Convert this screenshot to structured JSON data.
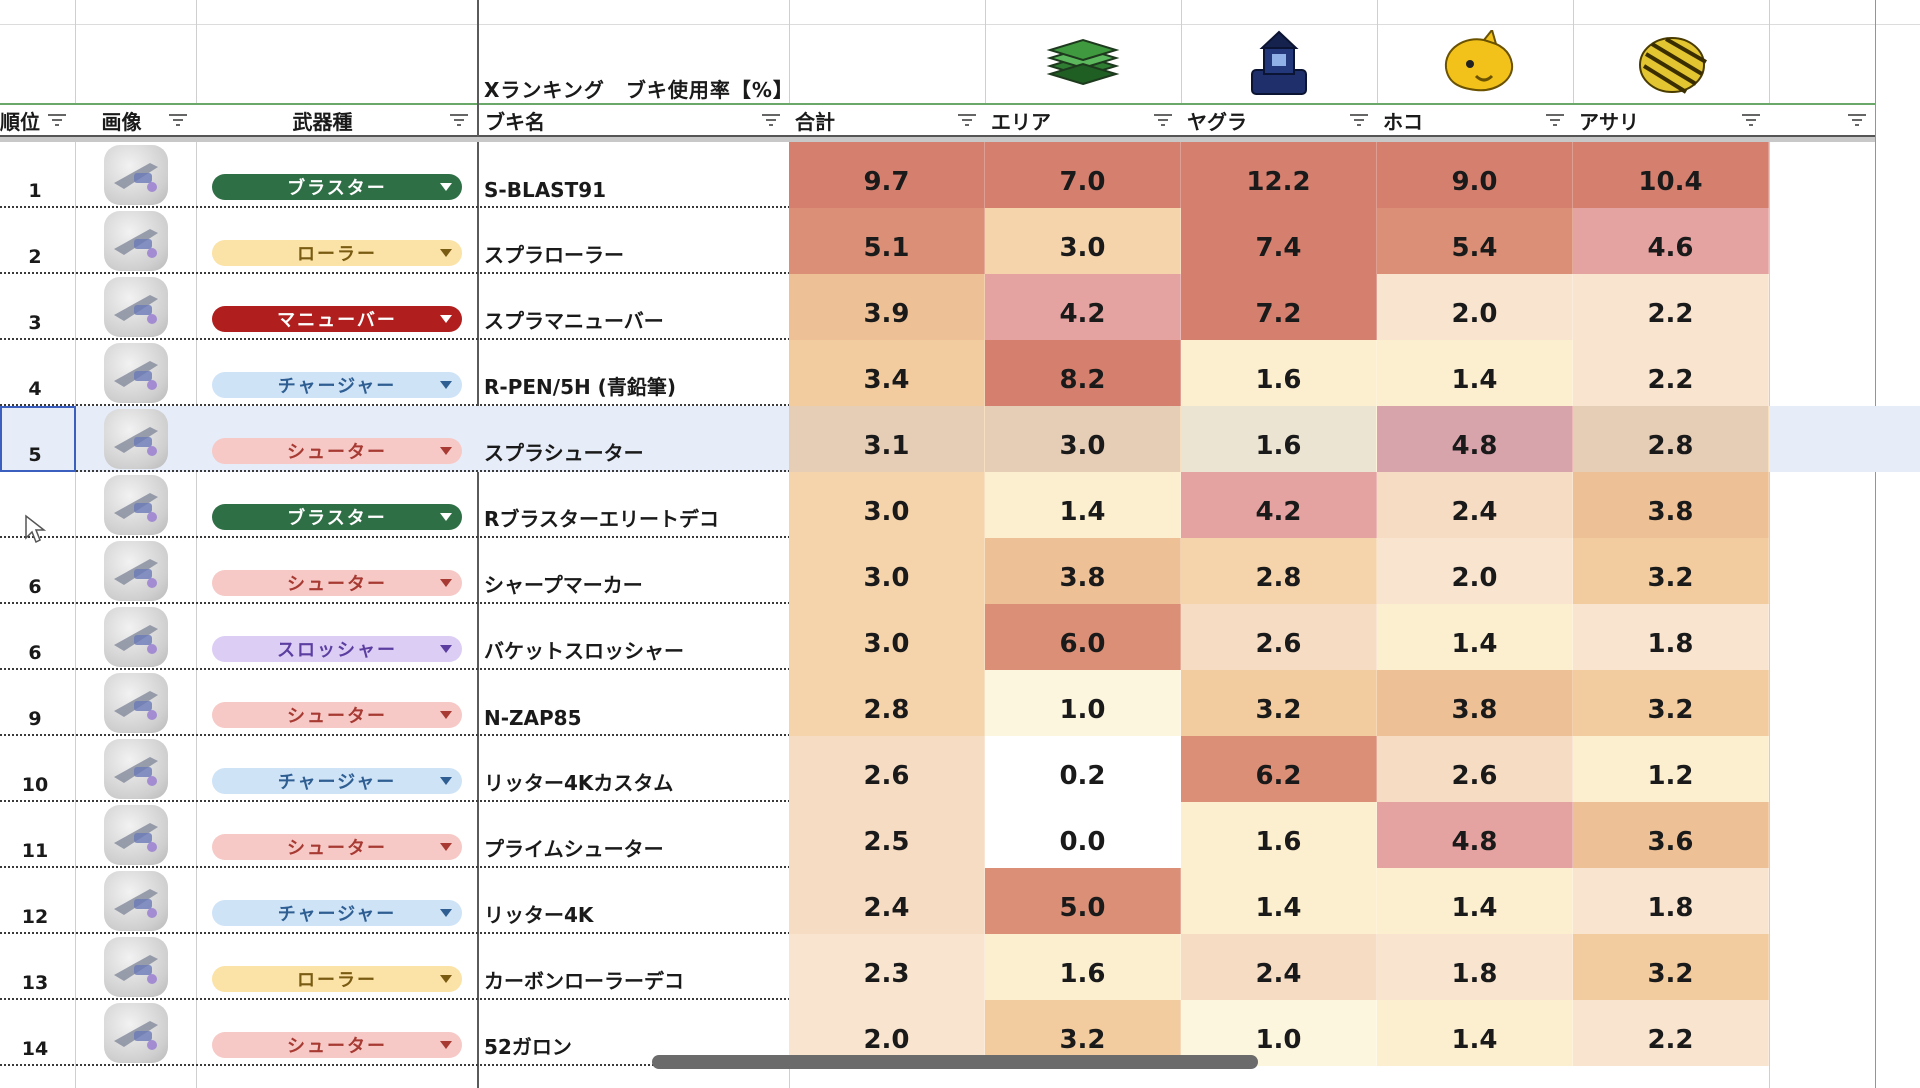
{
  "title": "Xランキング　ブキ使用率【%】",
  "modes": [
    {
      "name": "エリア",
      "icon": "splat-zones-icon"
    },
    {
      "name": "ヤグラ",
      "icon": "tower-control-icon"
    },
    {
      "name": "ホコ",
      "icon": "rainmaker-icon"
    },
    {
      "name": "アサリ",
      "icon": "clam-blitz-icon"
    }
  ],
  "headers": {
    "rank": "順位",
    "image": "画像",
    "type": "武器種",
    "name": "ブキ名",
    "total": "合計",
    "area": "エリア",
    "yagura": "ヤグラ",
    "hoko": "ホコ",
    "asari": "アサリ"
  },
  "type_colors": {
    "ブラスター": {
      "bg": "#2f6f46",
      "fg": "#ffffff"
    },
    "ローラー": {
      "bg": "#fbe2a6",
      "fg": "#7a5b12"
    },
    "マニューバー": {
      "bg": "#b01e1e",
      "fg": "#ffffff"
    },
    "チャージャー": {
      "bg": "#cfe3f7",
      "fg": "#2f5f92"
    },
    "シューター": {
      "bg": "#f6c9c6",
      "fg": "#a73a33"
    },
    "スロッシャー": {
      "bg": "#dccdf4",
      "fg": "#5b3ea0"
    }
  },
  "rows": [
    {
      "rank": "1",
      "type": "ブラスター",
      "name": "S-BLAST91",
      "values": [
        "9.7",
        "7.0",
        "12.2",
        "9.0",
        "10.4"
      ]
    },
    {
      "rank": "2",
      "type": "ローラー",
      "name": "スプラローラー",
      "values": [
        "5.1",
        "3.0",
        "7.4",
        "5.4",
        "4.6"
      ]
    },
    {
      "rank": "3",
      "type": "マニューバー",
      "name": "スプラマニューバー",
      "values": [
        "3.9",
        "4.2",
        "7.2",
        "2.0",
        "2.2"
      ]
    },
    {
      "rank": "4",
      "type": "チャージャー",
      "name": "R-PEN/5H (青鉛筆)",
      "values": [
        "3.4",
        "8.2",
        "1.6",
        "1.4",
        "2.2"
      ]
    },
    {
      "rank": "5",
      "type": "シューター",
      "name": "スプラシューター",
      "values": [
        "3.1",
        "3.0",
        "1.6",
        "4.8",
        "2.8"
      ],
      "selected": true
    },
    {
      "rank": "",
      "type": "ブラスター",
      "name": "Rブラスターエリートデコ",
      "values": [
        "3.0",
        "1.4",
        "4.2",
        "2.4",
        "3.8"
      ]
    },
    {
      "rank": "6",
      "type": "シューター",
      "name": "シャープマーカー",
      "values": [
        "3.0",
        "3.8",
        "2.8",
        "2.0",
        "3.2"
      ]
    },
    {
      "rank": "6",
      "type": "スロッシャー",
      "name": "バケットスロッシャー",
      "values": [
        "3.0",
        "6.0",
        "2.6",
        "1.4",
        "1.8"
      ]
    },
    {
      "rank": "9",
      "type": "シューター",
      "name": "N-ZAP85",
      "values": [
        "2.8",
        "1.0",
        "3.2",
        "3.8",
        "3.2"
      ]
    },
    {
      "rank": "10",
      "type": "チャージャー",
      "name": "リッター4Kカスタム",
      "values": [
        "2.6",
        "0.2",
        "6.2",
        "2.6",
        "1.2"
      ]
    },
    {
      "rank": "11",
      "type": "シューター",
      "name": "プライムシューター",
      "values": [
        "2.5",
        "0.0",
        "1.6",
        "4.8",
        "3.6"
      ]
    },
    {
      "rank": "12",
      "type": "チャージャー",
      "name": "リッター4K",
      "values": [
        "2.4",
        "5.0",
        "1.4",
        "1.4",
        "1.8"
      ]
    },
    {
      "rank": "13",
      "type": "ローラー",
      "name": "カーボンローラーデコ",
      "values": [
        "2.3",
        "1.6",
        "2.4",
        "1.8",
        "3.2"
      ]
    },
    {
      "rank": "14",
      "type": "シューター",
      "name": "52ガロン",
      "values": [
        "2.0",
        "3.2",
        "1.0",
        "1.4",
        "2.2"
      ]
    }
  ]
}
